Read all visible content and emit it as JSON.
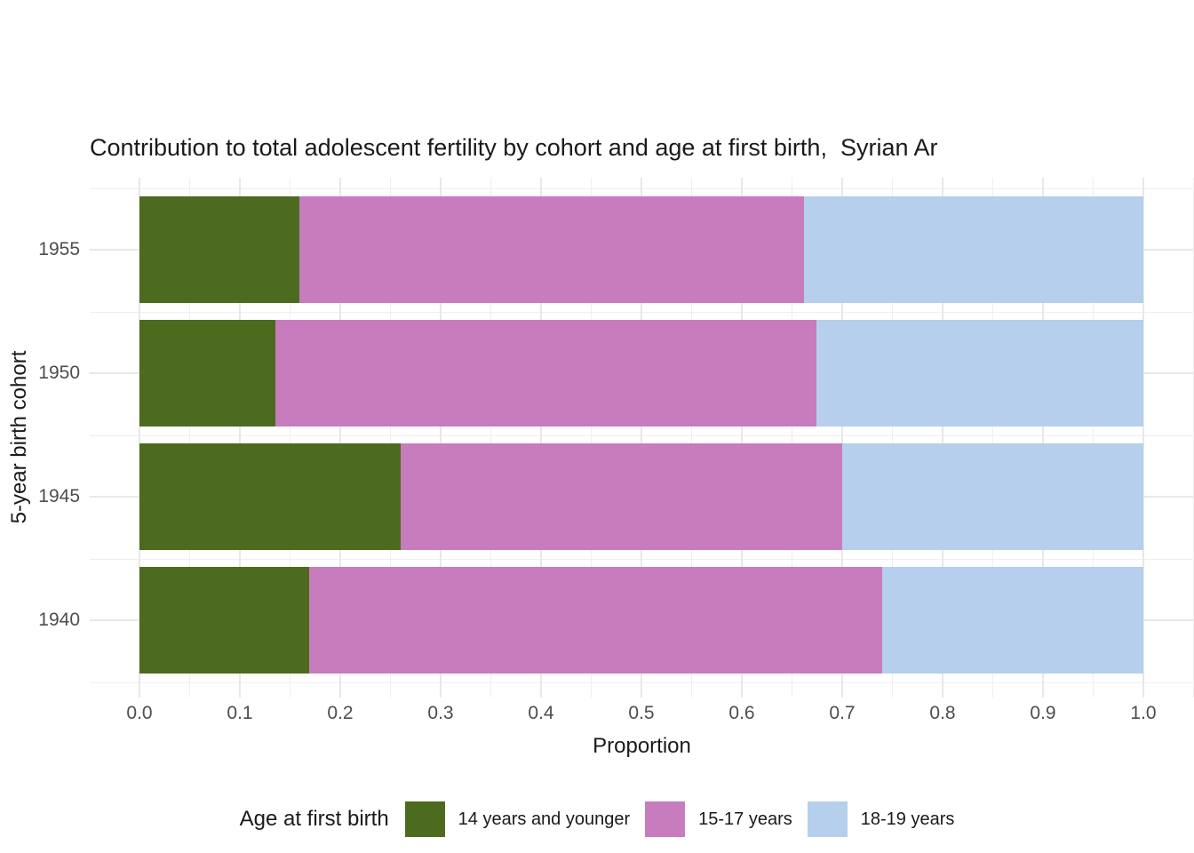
{
  "chart_data": {
    "type": "bar",
    "orientation": "horizontal",
    "stacked": true,
    "title": "Contribution to total adolescent fertility by cohort and age at first birth,  Syrian Ar",
    "xlabel": "Proportion",
    "ylabel": "5-year birth cohort",
    "categories": [
      "1955",
      "1950",
      "1945",
      "1940"
    ],
    "series": [
      {
        "name": "14 years and younger",
        "color": "#4c6b1e",
        "values": [
          0.159,
          0.135,
          0.26,
          0.169
        ]
      },
      {
        "name": "15-17 years",
        "color": "#c77cbd",
        "values": [
          0.503,
          0.539,
          0.44,
          0.571
        ]
      },
      {
        "name": "18-19 years",
        "color": "#b6cfec",
        "values": [
          0.338,
          0.326,
          0.3,
          0.26
        ]
      }
    ],
    "xlim": [
      0.0,
      1.0
    ],
    "x_ticks": [
      "0.0",
      "0.1",
      "0.2",
      "0.3",
      "0.4",
      "0.5",
      "0.6",
      "0.7",
      "0.8",
      "0.9",
      "1.0"
    ],
    "grid": true,
    "legend_title": "Age at first birth",
    "legend_position": "bottom",
    "background_color": "#ffffff",
    "grid_color": "#e8e8e8",
    "axis_text_color": "#4d4d4d",
    "text_color": "#1a1a1a"
  }
}
